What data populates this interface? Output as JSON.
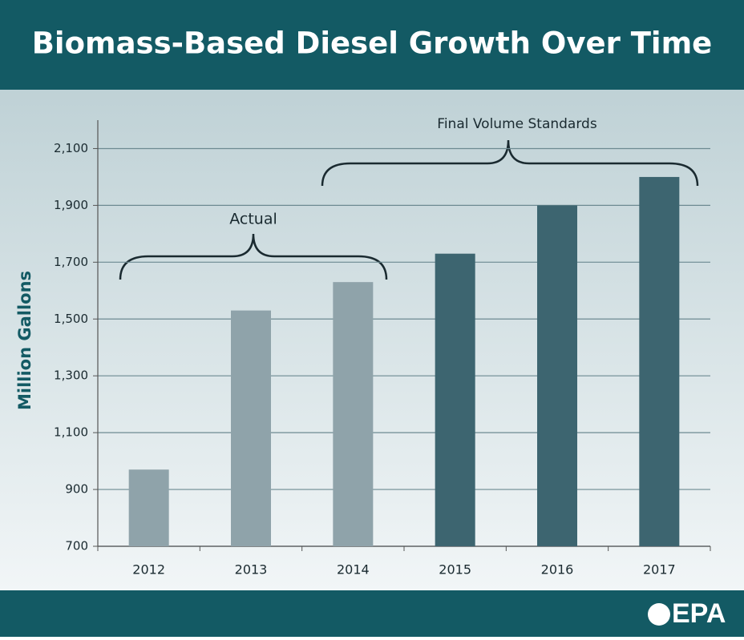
{
  "chart_data": {
    "type": "bar",
    "title": "Biomass-Based Diesel Growth Over Time",
    "y_label": "Million Gallons",
    "categories": [
      "2012",
      "2013",
      "2014",
      "2015",
      "2016",
      "2017"
    ],
    "values": [
      970,
      1530,
      1630,
      1730,
      1900,
      2000
    ],
    "colors": [
      "#8fa3aa",
      "#8fa3aa",
      "#8fa3aa",
      "#3d6570",
      "#3d6570",
      "#3d6570"
    ],
    "ylim": [
      700,
      2200
    ],
    "yticks": [
      700,
      900,
      {
        "value": 1100,
        "label": "1,100"
      },
      {
        "value": 1300,
        "label": "1,300"
      },
      {
        "value": 1500,
        "label": "1,500"
      },
      {
        "value": 1700,
        "label": "1,700"
      },
      {
        "value": 1900,
        "label": "1,900"
      },
      {
        "value": 2100,
        "label": "2,100"
      }
    ],
    "grid": true,
    "annotations": [
      "Actual",
      "Final Volume Standards"
    ],
    "logo": "EPA"
  }
}
